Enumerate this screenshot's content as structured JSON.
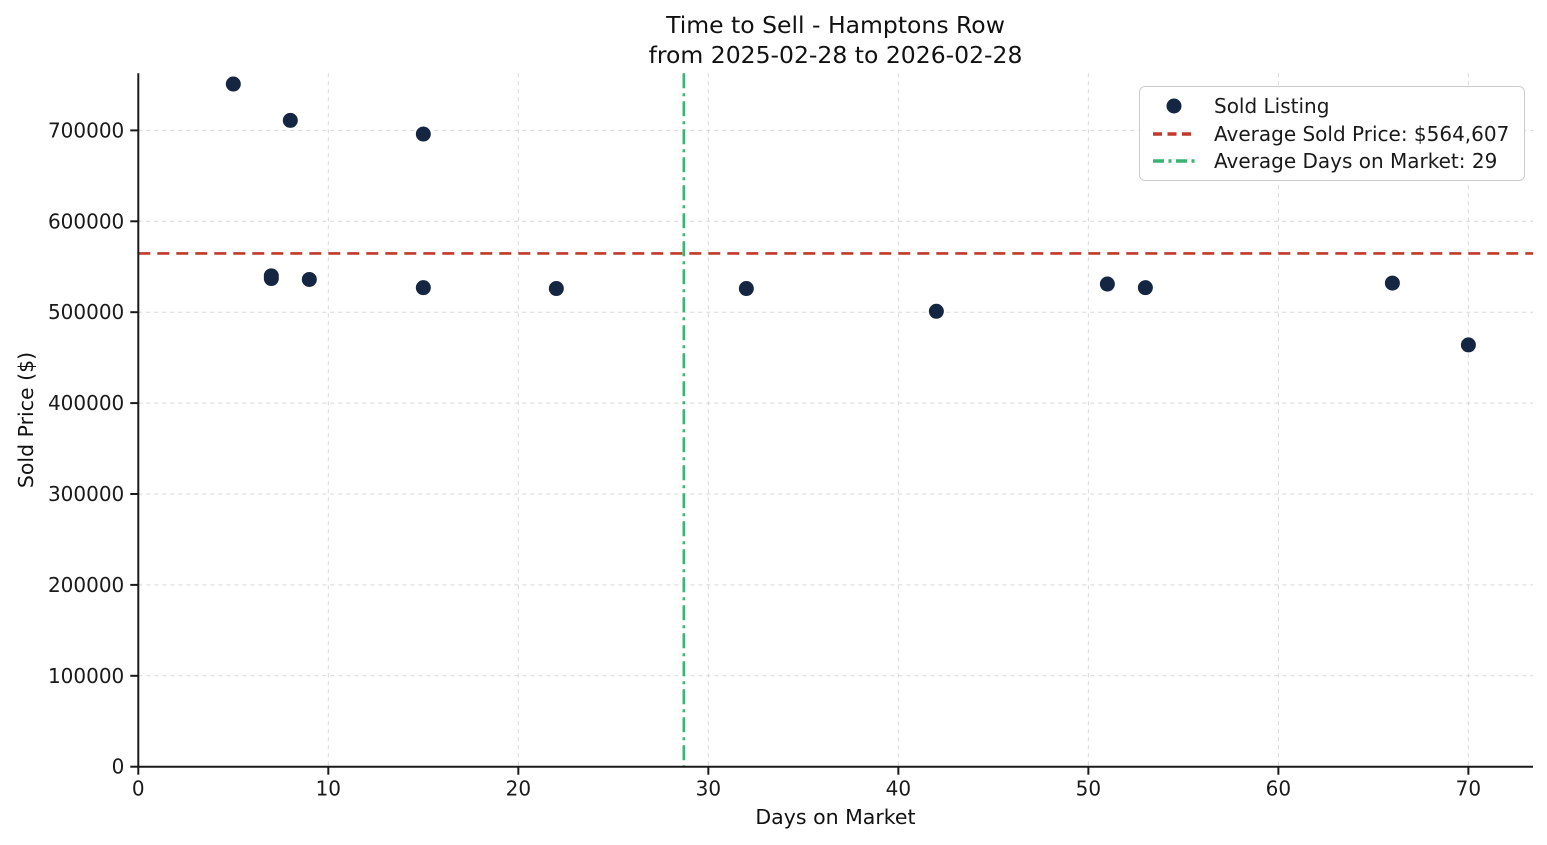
{
  "chart_data": {
    "type": "scatter",
    "title": "Time to Sell - Hamptons Row",
    "subtitle": "from 2025-02-28 to 2026-02-28",
    "xlabel": "Days on Market",
    "ylabel": "Sold Price ($)",
    "xlim": [
      0,
      73.4
    ],
    "ylim": [
      0,
      762800
    ],
    "xticks": [
      0,
      10,
      20,
      30,
      40,
      50,
      60,
      70
    ],
    "yticks": [
      0,
      100000,
      200000,
      300000,
      400000,
      500000,
      600000,
      700000
    ],
    "grid": true,
    "grid_color": "#d8d8d8",
    "axis_color": "#1a1a1a",
    "series": [
      {
        "name": "Sold Listing",
        "marker": "circle",
        "color": "#152642",
        "points": [
          [
            5,
            751000
          ],
          [
            7,
            540000
          ],
          [
            7,
            537000
          ],
          [
            8,
            711000
          ],
          [
            9,
            536000
          ],
          [
            15,
            696000
          ],
          [
            15,
            527000
          ],
          [
            22,
            526000
          ],
          [
            32,
            526000
          ],
          [
            42,
            501000
          ],
          [
            51,
            531000
          ],
          [
            53,
            527000
          ],
          [
            66,
            532000
          ],
          [
            70,
            464000
          ]
        ]
      }
    ],
    "reference_lines": [
      {
        "axis": "y",
        "value": 564607,
        "style": "dashed",
        "color": "#c0392b",
        "label": "Average Sold Price: $564,607"
      },
      {
        "axis": "x",
        "value": 28.71,
        "style": "dashdot",
        "color": "#3cb371",
        "label": "Average Days on Market: 29"
      }
    ],
    "legend": {
      "position": "upper right",
      "entries": [
        {
          "label": "Sold Listing",
          "handle": "dot"
        },
        {
          "label": "Average Sold Price: $564,607",
          "handle": "dashed-line"
        },
        {
          "label": "Average Days on Market: 29",
          "handle": "dashdot-line"
        }
      ]
    }
  }
}
